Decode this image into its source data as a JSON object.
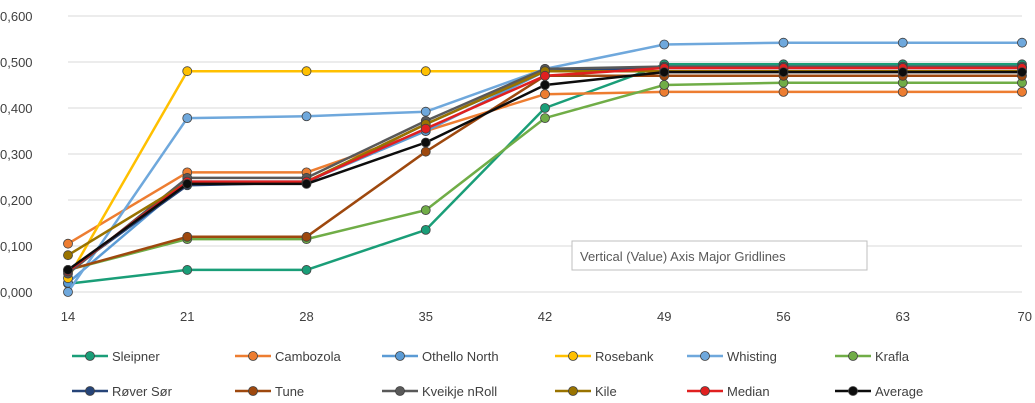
{
  "chart_data": {
    "type": "line",
    "x": [
      14,
      21,
      28,
      35,
      42,
      49,
      56,
      63,
      70
    ],
    "x_tick_labels": [
      "14",
      "21",
      "28",
      "35",
      "42",
      "49",
      "56",
      "63",
      "70"
    ],
    "ylim": [
      0,
      0.6
    ],
    "y_tick_labels": [
      "0,000",
      "0,100",
      "0,200",
      "0,300",
      "0,400",
      "0,500",
      "0,600"
    ],
    "grid": true,
    "legend_position": "bottom",
    "tooltip": "Vertical (Value) Axis Major Gridlines",
    "series": [
      {
        "name": "Sleipner",
        "color": "#1a9e78",
        "values": [
          0.018,
          0.048,
          0.048,
          0.135,
          0.4,
          0.495,
          0.495,
          0.495,
          0.495
        ]
      },
      {
        "name": "Cambozola",
        "color": "#ed7d31",
        "values": [
          0.105,
          0.26,
          0.26,
          0.35,
          0.43,
          0.435,
          0.435,
          0.435,
          0.435
        ]
      },
      {
        "name": "Othello North",
        "color": "#5b9bd5",
        "values": [
          0.02,
          0.24,
          0.24,
          0.35,
          0.48,
          0.49,
          0.49,
          0.49,
          0.49
        ]
      },
      {
        "name": "Rosebank",
        "color": "#ffc000",
        "values": [
          0.03,
          0.48,
          0.48,
          0.48,
          0.48,
          0.48,
          0.48,
          0.48,
          0.48
        ]
      },
      {
        "name": "Whisting",
        "color": "#6fa8dc",
        "values": [
          0.0,
          0.378,
          0.382,
          0.392,
          0.485,
          0.538,
          0.542,
          0.542,
          0.542
        ]
      },
      {
        "name": "Krafla",
        "color": "#70ad47",
        "values": [
          0.048,
          0.115,
          0.115,
          0.178,
          0.378,
          0.45,
          0.455,
          0.455,
          0.455
        ]
      },
      {
        "name": "Røver Sør",
        "color": "#264478",
        "values": [
          0.045,
          0.232,
          0.238,
          0.365,
          0.48,
          0.487,
          0.487,
          0.487,
          0.487
        ]
      },
      {
        "name": "Tune",
        "color": "#9e480e",
        "values": [
          0.048,
          0.12,
          0.12,
          0.305,
          0.47,
          0.47,
          0.47,
          0.47,
          0.47
        ]
      },
      {
        "name": "Kveikje nRoll",
        "color": "#595959",
        "values": [
          0.04,
          0.248,
          0.248,
          0.372,
          0.485,
          0.49,
          0.49,
          0.49,
          0.49
        ]
      },
      {
        "name": "Kile",
        "color": "#997300",
        "values": [
          0.08,
          0.238,
          0.24,
          0.365,
          0.48,
          0.48,
          0.48,
          0.48,
          0.48
        ]
      },
      {
        "name": "Median",
        "color": "#e02020",
        "values": [
          0.045,
          0.24,
          0.24,
          0.355,
          0.47,
          0.487,
          0.487,
          0.487,
          0.487
        ]
      },
      {
        "name": "Average",
        "color": "#0d0d0d",
        "values": [
          0.048,
          0.235,
          0.235,
          0.325,
          0.45,
          0.478,
          0.478,
          0.478,
          0.478
        ]
      }
    ]
  }
}
